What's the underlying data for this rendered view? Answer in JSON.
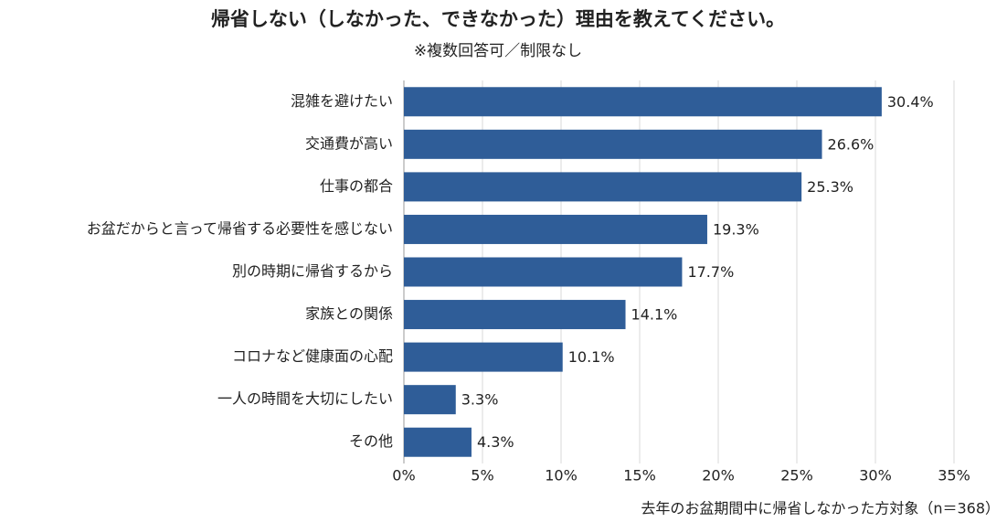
{
  "chart_data": {
    "type": "bar",
    "orientation": "horizontal",
    "title": "帰省しない（しなかった、できなかった）理由を教えてください。",
    "subtitle": "※複数回答可／制限なし",
    "note": "去年のお盆期間中に帰省しなかった方対象（n＝368）",
    "categories": [
      "混雑を避けたい",
      "交通費が高い",
      "仕事の都合",
      "お盆だからと言って帰省する必要性を感じない",
      "別の時期に帰省するから",
      "家族との関係",
      "コロナなど健康面の心配",
      "一人の時間を大切にしたい",
      "その他"
    ],
    "values": [
      30.4,
      26.6,
      25.3,
      19.3,
      17.7,
      14.1,
      10.1,
      3.3,
      4.3
    ],
    "value_labels": [
      "30.4%",
      "26.6%",
      "25.3%",
      "19.3%",
      "17.7%",
      "14.1%",
      "10.1%",
      "3.3%",
      "4.3%"
    ],
    "color": "#2f5d98",
    "xlim": [
      0,
      35
    ],
    "xticks": [
      {
        "value": 0,
        "label": "0%"
      },
      {
        "value": 5,
        "label": "5%"
      },
      {
        "value": 10,
        "label": "10%"
      },
      {
        "value": 15,
        "label": "15%"
      },
      {
        "value": 20,
        "label": "20%"
      },
      {
        "value": 25,
        "label": "25%"
      },
      {
        "value": 30,
        "label": "30%"
      },
      {
        "value": 35,
        "label": "35%"
      }
    ],
    "grid": true
  }
}
